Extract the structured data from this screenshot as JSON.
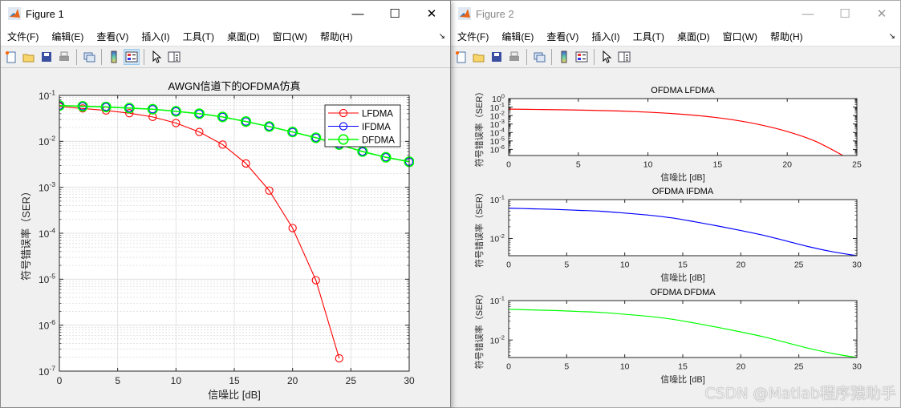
{
  "figure1": {
    "title": "Figure 1",
    "window_controls": {
      "minimize": "—",
      "maximize": "☐",
      "close": "✕"
    },
    "menu": [
      "文件(F)",
      "编辑(E)",
      "查看(V)",
      "插入(I)",
      "工具(T)",
      "桌面(D)",
      "窗口(W)",
      "帮助(H)"
    ],
    "dock_icon": "↘",
    "toolbar": [
      "new-figure-icon",
      "open-file-icon",
      "save-icon",
      "print-icon",
      "link-plot-icon",
      "colorbar-icon",
      "legend-icon",
      "pointer-icon",
      "property-editor-icon"
    ]
  },
  "figure2": {
    "title": "Figure 2",
    "window_controls": {
      "minimize": "—",
      "maximize": "☐",
      "close": "✕"
    },
    "menu": [
      "文件(F)",
      "编辑(E)",
      "查看(V)",
      "插入(I)",
      "工具(T)",
      "桌面(D)",
      "窗口(W)",
      "帮助(H)"
    ],
    "dock_icon": "↘"
  },
  "watermark": "CSDN @Matlab程序猿助手",
  "colors": {
    "lfdma": "#ff0000",
    "ifdma": "#0000ff",
    "dfdma": "#00ff00"
  },
  "chart_data": [
    {
      "type": "line",
      "title": "AWGN信道下的OFDMA仿真",
      "xlabel": "信噪比 [dB]",
      "ylabel": "符号错误率（SER）",
      "yscale": "log",
      "xlim": [
        0,
        30
      ],
      "ylim": [
        1e-07,
        0.1
      ],
      "xticks": [
        0,
        5,
        10,
        15,
        20,
        25,
        30
      ],
      "yticks": [
        "10^-1",
        "10^-2",
        "10^-3",
        "10^-4",
        "10^-5",
        "10^-6",
        "10^-7"
      ],
      "grid": true,
      "legend_position": "northeast",
      "series": [
        {
          "name": "LFDMA",
          "color": "#ff0000",
          "marker": "o",
          "x": [
            0,
            2,
            4,
            6,
            8,
            10,
            12,
            14,
            16,
            18,
            20,
            22,
            24
          ],
          "values": [
            0.057,
            0.052,
            0.047,
            0.041,
            0.034,
            0.025,
            0.016,
            0.0085,
            0.0033,
            0.00085,
            0.00013,
            9.5e-06,
            1.9e-07
          ]
        },
        {
          "name": "IFDMA",
          "color": "#0000ff",
          "marker": "o",
          "x": [
            0,
            2,
            4,
            6,
            8,
            10,
            12,
            14,
            16,
            18,
            20,
            22,
            24,
            26,
            28,
            30
          ],
          "values": [
            0.06,
            0.058,
            0.056,
            0.053,
            0.05,
            0.045,
            0.04,
            0.034,
            0.027,
            0.021,
            0.016,
            0.012,
            0.0085,
            0.006,
            0.0045,
            0.0036
          ]
        },
        {
          "name": "DFDMA",
          "color": "#00ff00",
          "marker": "o",
          "x": [
            0,
            2,
            4,
            6,
            8,
            10,
            12,
            14,
            16,
            18,
            20,
            22,
            24,
            26,
            28,
            30
          ],
          "values": [
            0.06,
            0.058,
            0.056,
            0.053,
            0.05,
            0.045,
            0.04,
            0.034,
            0.027,
            0.021,
            0.016,
            0.012,
            0.0085,
            0.006,
            0.0045,
            0.0036
          ]
        }
      ]
    },
    {
      "type": "line",
      "title": "OFDMA LFDMA",
      "xlabel": "信噪比 [dB]",
      "ylabel": "符号错误率（SER）",
      "yscale": "log",
      "xlim": [
        0,
        25
      ],
      "ylim": [
        1.9e-07,
        1
      ],
      "xticks": [
        0,
        5,
        10,
        15,
        20,
        25
      ],
      "yticks": [
        "10^0",
        "10^-5"
      ],
      "series": [
        {
          "name": "LFDMA",
          "color": "#ff0000",
          "x": [
            0,
            2,
            4,
            6,
            8,
            10,
            12,
            14,
            16,
            18,
            20,
            22,
            24
          ],
          "values": [
            0.057,
            0.052,
            0.047,
            0.041,
            0.034,
            0.025,
            0.016,
            0.0085,
            0.0033,
            0.00085,
            0.00013,
            9.5e-06,
            1.9e-07
          ]
        }
      ]
    },
    {
      "type": "line",
      "title": "OFDMA IFDMA",
      "xlabel": "信噪比 [dB]",
      "ylabel": "符号错误率（SER）",
      "yscale": "log",
      "xlim": [
        0,
        30
      ],
      "ylim": [
        0.0036,
        0.1
      ],
      "xticks": [
        0,
        5,
        10,
        15,
        20,
        25,
        30
      ],
      "yticks": [
        "10^-1",
        "10^-2"
      ],
      "series": [
        {
          "name": "IFDMA",
          "color": "#0000ff",
          "x": [
            0,
            2,
            4,
            6,
            8,
            10,
            12,
            14,
            16,
            18,
            20,
            22,
            24,
            26,
            28,
            30
          ],
          "values": [
            0.06,
            0.058,
            0.056,
            0.053,
            0.05,
            0.045,
            0.04,
            0.034,
            0.027,
            0.021,
            0.016,
            0.012,
            0.0085,
            0.006,
            0.0045,
            0.0036
          ]
        }
      ]
    },
    {
      "type": "line",
      "title": "OFDMA DFDMA",
      "xlabel": "信噪比 [dB]",
      "ylabel": "符号错误率（SER）",
      "yscale": "log",
      "xlim": [
        0,
        30
      ],
      "ylim": [
        0.0036,
        0.1
      ],
      "xticks": [
        0,
        5,
        10,
        15,
        20,
        25,
        30
      ],
      "yticks": [
        "10^-1",
        "10^-2"
      ],
      "series": [
        {
          "name": "DFDMA",
          "color": "#00ff00",
          "x": [
            0,
            2,
            4,
            6,
            8,
            10,
            12,
            14,
            16,
            18,
            20,
            22,
            24,
            26,
            28,
            30
          ],
          "values": [
            0.06,
            0.058,
            0.056,
            0.053,
            0.05,
            0.045,
            0.04,
            0.034,
            0.027,
            0.021,
            0.016,
            0.012,
            0.0085,
            0.006,
            0.0045,
            0.0036
          ]
        }
      ]
    }
  ]
}
